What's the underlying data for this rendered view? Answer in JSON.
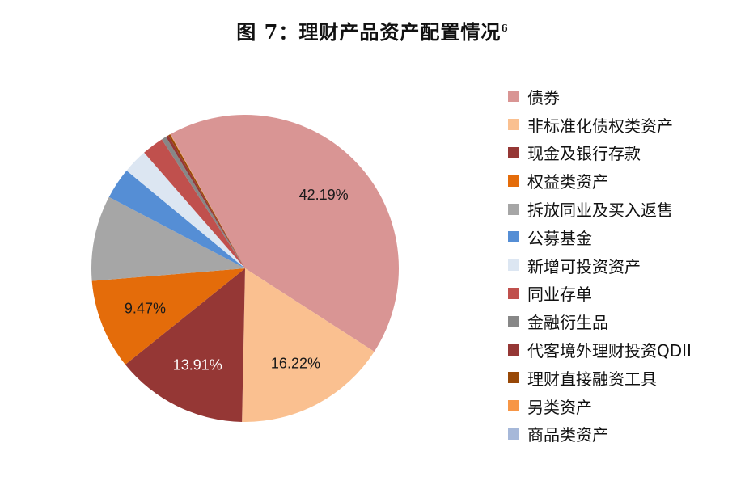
{
  "title": {
    "main": "图 7：理财产品资产配置情况",
    "footnote": "6"
  },
  "chart_data": {
    "type": "pie",
    "title": "图 7：理财产品资产配置情况",
    "start_angle_deg": -29,
    "direction": "clockwise",
    "legend_position": "right",
    "slices": [
      {
        "name": "债券",
        "value": 42.19,
        "label": "42.19%",
        "color": "#D99594"
      },
      {
        "name": "非标准化债权类资产",
        "value": 16.22,
        "label": "16.22%",
        "color": "#FAC090"
      },
      {
        "name": "现金及银行存款",
        "value": 13.91,
        "label": "13.91%",
        "color": "#953735"
      },
      {
        "name": "权益类资产",
        "value": 9.47,
        "label": "9.47%",
        "color": "#E46C0A"
      },
      {
        "name": "拆放同业及买入返售",
        "value": 9.0,
        "label": "",
        "color": "#A6A6A6"
      },
      {
        "name": "公募基金",
        "value": 3.3,
        "label": "",
        "color": "#558ED5"
      },
      {
        "name": "新增可投资资产",
        "value": 2.6,
        "label": "",
        "color": "#DCE6F2"
      },
      {
        "name": "同业存单",
        "value": 2.3,
        "label": "",
        "color": "#C0504D"
      },
      {
        "name": "金融衍生品",
        "value": 0.5,
        "label": "",
        "color": "#878787"
      },
      {
        "name": "代客境外理财投资QDII",
        "value": 0.3,
        "label": "",
        "color": "#953735"
      },
      {
        "name": "理财直接融资工具",
        "value": 0.2,
        "label": "",
        "color": "#984807"
      },
      {
        "name": "另类资产",
        "value": 0.05,
        "label": "",
        "color": "#F79646"
      },
      {
        "name": "商品类资产",
        "value": 0.01,
        "label": "",
        "color": "#A6B8D9"
      }
    ]
  },
  "legend": {
    "items": [
      {
        "label": "债券",
        "color": "#D99594"
      },
      {
        "label": "非标准化债权类资产",
        "color": "#FAC090"
      },
      {
        "label": "现金及银行存款",
        "color": "#953735"
      },
      {
        "label": "权益类资产",
        "color": "#E46C0A"
      },
      {
        "label": "拆放同业及买入返售",
        "color": "#A6A6A6"
      },
      {
        "label": "公募基金",
        "color": "#558ED5"
      },
      {
        "label": "新增可投资资产",
        "color": "#DCE6F2"
      },
      {
        "label": "同业存单",
        "color": "#C0504D"
      },
      {
        "label": "金融衍生品",
        "color": "#878787"
      },
      {
        "label": "代客境外理财投资QDII",
        "color": "#953735"
      },
      {
        "label": "理财直接融资工具",
        "color": "#984807"
      },
      {
        "label": "另类资产",
        "color": "#F79646"
      },
      {
        "label": "商品类资产",
        "color": "#A6B8D9"
      }
    ]
  }
}
